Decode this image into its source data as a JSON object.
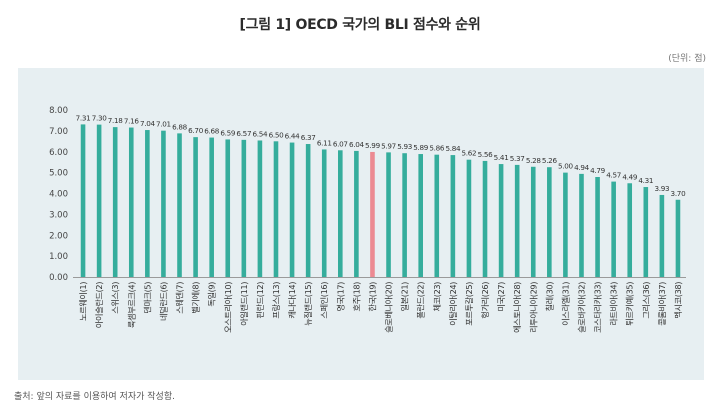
{
  "header": {
    "title": "[그림 1] OECD 국가의 BLI 점수와 순위",
    "unit": "(단위: 점)"
  },
  "footer": {
    "source": "출처: 앞의 자료를 이용하여 저자가 작성함."
  },
  "colors": {
    "bar": "#35ad9c",
    "highlight": "#ec8a92",
    "panel": "#e7eff2"
  },
  "chart_data": {
    "type": "bar",
    "title": "[그림 1] OECD 국가의 BLI 점수와 순위",
    "xlabel": "",
    "ylabel": "",
    "ylim": [
      0,
      8
    ],
    "yticks": [
      "0.00",
      "1.00",
      "2.00",
      "3.00",
      "4.00",
      "5.00",
      "6.00",
      "7.00",
      "8.00"
    ],
    "grid": false,
    "highlight_index": 18,
    "categories": [
      "노르웨이(1)",
      "아이슬란드(2)",
      "스위스(3)",
      "룩셈부르크(4)",
      "덴마크(5)",
      "네덜란드(6)",
      "스웨덴(7)",
      "벨기에(8)",
      "독일(9)",
      "오스트리아(10)",
      "아일랜드(11)",
      "핀란드(12)",
      "프랑스(13)",
      "캐나다(14)",
      "뉴질랜드(15)",
      "스페인(16)",
      "영국(17)",
      "호주(18)",
      "한국(19)",
      "슬로베니아(20)",
      "일본(21)",
      "폴란드(22)",
      "체코(23)",
      "이탈리아(24)",
      "포르투갈(25)",
      "헝가리(26)",
      "미국(27)",
      "에스토니아(28)",
      "리투아니아(29)",
      "칠레(30)",
      "이스라엘(31)",
      "슬로바키아(32)",
      "코스타리카(33)",
      "라트비아(34)",
      "튀르키예(35)",
      "그리스(36)",
      "콜롬비아(37)",
      "멕시코(38)"
    ],
    "values": [
      7.31,
      7.3,
      7.18,
      7.16,
      7.04,
      7.01,
      6.88,
      6.7,
      6.68,
      6.59,
      6.57,
      6.54,
      6.5,
      6.44,
      6.37,
      6.11,
      6.07,
      6.04,
      5.99,
      5.97,
      5.93,
      5.89,
      5.86,
      5.84,
      5.62,
      5.56,
      5.41,
      5.37,
      5.28,
      5.26,
      5.0,
      4.94,
      4.79,
      4.57,
      4.49,
      4.31,
      3.93,
      3.7
    ],
    "value_labels": [
      "7.31",
      "7.30",
      "7.18",
      "7.16",
      "7.04",
      "7.01",
      "6.88",
      "6.70",
      "6.68",
      "6.59",
      "6.57",
      "6.54",
      "6.50",
      "6.44",
      "6.37",
      "6.11",
      "6.07",
      "6.04",
      "5.99",
      "5.97",
      "5.93",
      "5.89",
      "5.86",
      "5.84",
      "5.62",
      "5.56",
      "5.41",
      "5.37",
      "5.28",
      "5.26",
      "5.00",
      "4.94",
      "4.79",
      "4.57",
      "4.49",
      "4.31",
      "3.93",
      "3.70"
    ]
  }
}
